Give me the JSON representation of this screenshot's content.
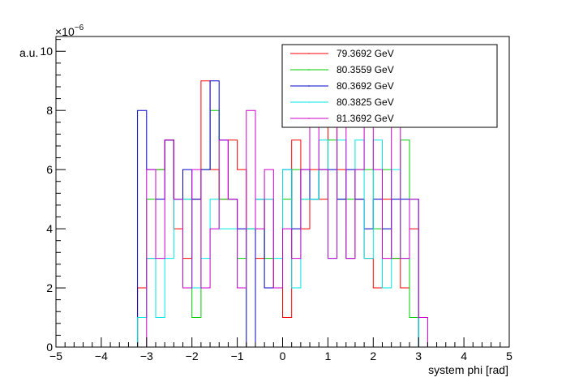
{
  "chart_data": {
    "type": "histogram-step",
    "xlabel": "system phi [rad]",
    "ylabel": "a.u.",
    "exponent_label": "×10",
    "exponent_power": "−6",
    "xlim": [
      -5,
      5
    ],
    "ylim": [
      0,
      10.5
    ],
    "x_ticks": [
      -5,
      -4,
      -3,
      -2,
      -1,
      0,
      1,
      2,
      3,
      4,
      5
    ],
    "y_ticks": [
      0,
      2,
      4,
      6,
      8,
      10
    ],
    "bin_edges": [
      -3.2,
      -3.0,
      -2.8,
      -2.6,
      -2.4,
      -2.2,
      -2.0,
      -1.8,
      -1.6,
      -1.4,
      -1.2,
      -1.0,
      -0.8,
      -0.6,
      -0.4,
      -0.2,
      0.0,
      0.2,
      0.4,
      0.6,
      0.8,
      1.0,
      1.2,
      1.4,
      1.6,
      1.8,
      2.0,
      2.2,
      2.4,
      2.6,
      2.8,
      3.0,
      3.2
    ],
    "series": [
      {
        "name": "79.3692 GeV",
        "color": "#ff0000",
        "values": [
          2,
          3,
          6,
          7,
          4,
          3,
          5,
          9,
          6,
          5,
          7,
          6,
          4,
          3,
          5,
          2,
          1,
          7,
          4,
          6,
          5,
          8,
          6,
          3,
          5,
          3,
          2,
          5,
          3,
          2,
          4,
          0
        ]
      },
      {
        "name": "80.3559 GeV",
        "color": "#00cc00",
        "values": [
          1,
          5,
          6,
          7,
          5,
          5,
          1,
          6,
          8,
          5,
          5,
          3,
          4,
          5,
          3,
          2,
          5,
          6,
          5,
          5,
          6,
          7,
          5,
          5,
          6,
          6,
          4,
          6,
          3,
          7,
          1,
          0
        ]
      },
      {
        "name": "80.3692 GeV",
        "color": "#0000cc",
        "values": [
          8,
          6,
          5,
          7,
          5,
          6,
          5,
          6,
          9,
          7,
          5,
          4,
          0,
          5,
          2,
          2,
          6,
          4,
          6,
          5,
          6,
          6,
          5,
          6,
          5,
          4,
          5,
          4,
          5,
          5,
          5,
          0
        ]
      },
      {
        "name": "80.3825 GeV",
        "color": "#00e6e6",
        "values": [
          1,
          3,
          1,
          3,
          5,
          5,
          2,
          3,
          5,
          4,
          4,
          2,
          4,
          5,
          5,
          3,
          6,
          2,
          5,
          5,
          7,
          3,
          7,
          3,
          7,
          3,
          7,
          2,
          6,
          3,
          5,
          0
        ]
      },
      {
        "name": "81.3692 GeV",
        "color": "#cc00cc",
        "values": [
          0,
          6,
          3,
          7,
          5,
          2,
          6,
          2,
          4,
          7,
          5,
          2,
          8,
          4,
          6,
          2,
          4,
          3,
          6,
          8,
          6,
          3,
          8,
          3,
          6,
          8,
          6,
          3,
          8,
          3,
          5,
          1
        ]
      }
    ],
    "legend_position": "top-right",
    "grid": false
  }
}
